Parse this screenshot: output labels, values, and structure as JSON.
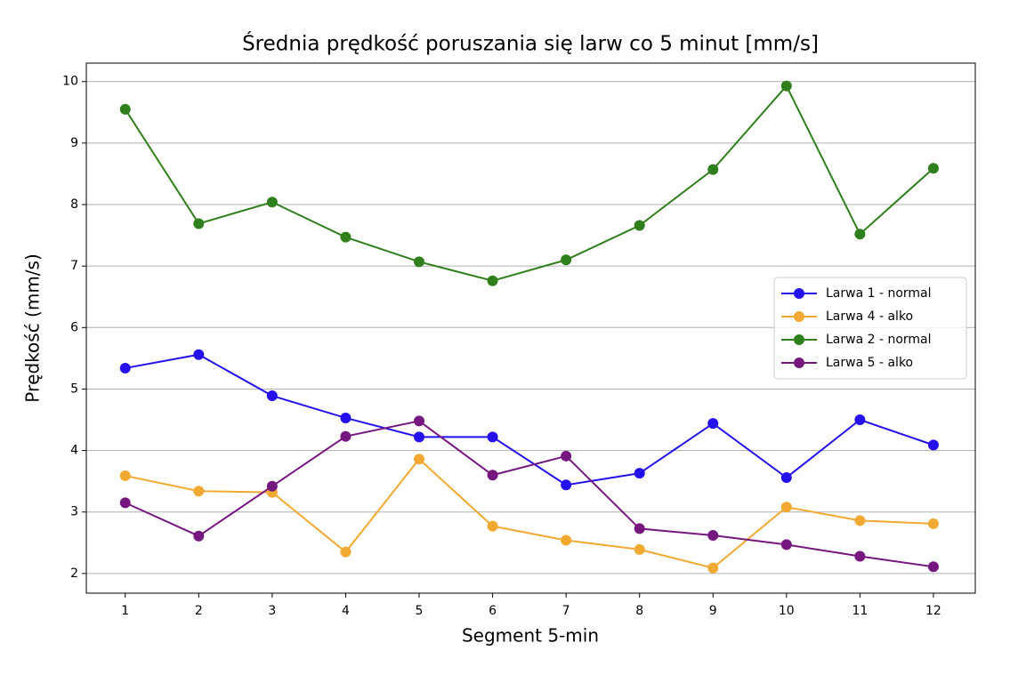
{
  "chart_data": {
    "type": "line",
    "title": "Średnia prędkość poruszania się larw co 5 minut [mm/s]",
    "xlabel": "Segment 5-min",
    "ylabel": "Prędkość (mm/s)",
    "x": [
      1,
      2,
      3,
      4,
      5,
      6,
      7,
      8,
      9,
      10,
      11,
      12
    ],
    "xlim": [
      0.47,
      12.57
    ],
    "xticks": [
      1,
      2,
      3,
      4,
      5,
      6,
      7,
      8,
      9,
      10,
      11,
      12
    ],
    "ylim": [
      1.68,
      10.3
    ],
    "yticks": [
      2,
      3,
      4,
      5,
      6,
      7,
      8,
      9,
      10
    ],
    "grid": "y",
    "legend": "center right",
    "series": [
      {
        "name": "Larwa 1 - normal",
        "color": "#2412ec",
        "values": [
          5.34,
          5.56,
          4.89,
          4.53,
          4.22,
          4.22,
          3.44,
          3.63,
          4.44,
          3.56,
          4.5,
          4.09
        ]
      },
      {
        "name": "Larwa 4 - alko",
        "color": "#f2a932",
        "values": [
          3.59,
          3.34,
          3.32,
          2.35,
          3.86,
          2.77,
          2.54,
          2.39,
          2.09,
          3.08,
          2.86,
          2.81
        ]
      },
      {
        "name": "Larwa 2 - normal",
        "color": "#2f7f1c",
        "values": [
          9.55,
          7.69,
          8.04,
          7.47,
          7.07,
          6.76,
          7.1,
          7.66,
          8.57,
          9.93,
          7.52,
          8.59
        ]
      },
      {
        "name": "Larwa 5 - alko",
        "color": "#76177f",
        "values": [
          3.15,
          2.61,
          3.42,
          4.23,
          4.48,
          3.6,
          3.91,
          2.73,
          2.62,
          2.47,
          2.28,
          2.11
        ]
      }
    ]
  }
}
